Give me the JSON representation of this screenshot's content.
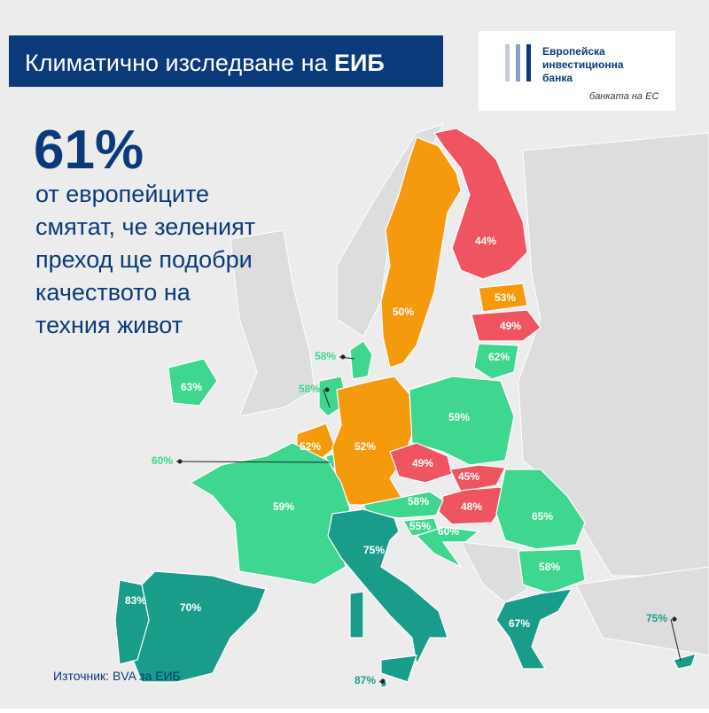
{
  "header": {
    "title": "Климатично изследване на",
    "title_bold": "ЕИБ"
  },
  "logo": {
    "name_lines": [
      "Европейска",
      "инвестиционна",
      "банка"
    ],
    "tagline": "банката на ЕС"
  },
  "headline": {
    "value": "61%",
    "lines": [
      "от европейците",
      "смятат, че зеленият",
      "преход ще подобри",
      "качеството на",
      "техния живот"
    ]
  },
  "source": "Източник: BVA за ЕИБ",
  "regions": [
    {
      "label": "44%",
      "color": "#ef5560"
    },
    {
      "label": "50%",
      "color": "#f59a0c"
    },
    {
      "label": "53%",
      "color": "#f59a0c"
    },
    {
      "label": "49%",
      "color": "#ef5560"
    },
    {
      "label": "62%",
      "color": "#3fd68f"
    },
    {
      "label": "58%",
      "color": "#3fd68f"
    },
    {
      "label": "63%",
      "color": "#3fd68f"
    },
    {
      "label": "58%",
      "color": "#3fd68f"
    },
    {
      "label": "52%",
      "color": "#f59a0c"
    },
    {
      "label": "60%",
      "color": "#3fd68f"
    },
    {
      "label": "52%",
      "color": "#f59a0c"
    },
    {
      "label": "59%",
      "color": "#3fd68f"
    },
    {
      "label": "49%",
      "color": "#ef5560"
    },
    {
      "label": "45%",
      "color": "#ef5560"
    },
    {
      "label": "48%",
      "color": "#ef5560"
    },
    {
      "label": "58%",
      "color": "#3fd68f"
    },
    {
      "label": "55%",
      "color": "#3fd68f"
    },
    {
      "label": "60%",
      "color": "#3fd68f"
    },
    {
      "label": "65%",
      "color": "#3fd68f"
    },
    {
      "label": "58%",
      "color": "#3fd68f"
    },
    {
      "label": "59%",
      "color": "#3fd68f"
    },
    {
      "label": "75%",
      "color": "#1a9c8a"
    },
    {
      "label": "70%",
      "color": "#1a9c8a"
    },
    {
      "label": "83%",
      "color": "#1a9c8a"
    },
    {
      "label": "67%",
      "color": "#1a9c8a"
    },
    {
      "label": "75%",
      "color": "#1a9c8a"
    },
    {
      "label": "87%",
      "color": "#1a9c8a"
    }
  ]
}
